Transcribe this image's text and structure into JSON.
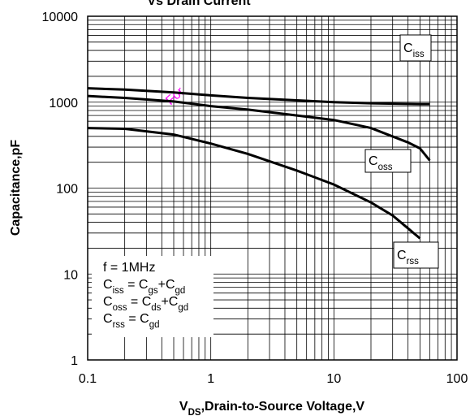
{
  "chart_data": {
    "type": "line",
    "title": "Vs Drain Current",
    "watermark": "For",
    "x_label": [
      {
        "t": "V"
      },
      {
        "sub": "DS"
      },
      {
        "t": ",Drain-to-Source Voltage,V"
      }
    ],
    "y_label": "Capacitance,pF",
    "log_x": true,
    "log_y": true,
    "grid": true,
    "xlim": [
      0.1,
      100
    ],
    "ylim": [
      1,
      10000
    ],
    "xticks": [
      0.1,
      1,
      10,
      100
    ],
    "yticks": [
      1,
      10,
      100,
      1000,
      10000
    ],
    "series": [
      {
        "name": "Ciss",
        "color": "#000000",
        "x": [
          0.1,
          0.2,
          0.5,
          1,
          2,
          5,
          10,
          20,
          50,
          60
        ],
        "values": [
          1450,
          1400,
          1300,
          1200,
          1120,
          1050,
          1000,
          970,
          950,
          950
        ]
      },
      {
        "name": "Coss",
        "color": "#000000",
        "x": [
          0.1,
          0.2,
          0.5,
          1,
          2,
          5,
          10,
          20,
          40,
          50,
          60
        ],
        "values": [
          1180,
          1120,
          1020,
          900,
          820,
          700,
          620,
          500,
          340,
          290,
          210
        ]
      },
      {
        "name": "Crss",
        "color": "#000000",
        "x": [
          0.1,
          0.2,
          0.5,
          1,
          2,
          5,
          10,
          20,
          30,
          50
        ],
        "values": [
          500,
          490,
          420,
          330,
          250,
          160,
          110,
          68,
          48,
          26
        ]
      }
    ],
    "note": [
      [
        {
          "t": "f = 1MHz"
        }
      ],
      [
        {
          "t": "C"
        },
        {
          "sub": "iss"
        },
        {
          "t": " = C"
        },
        {
          "sub": "gs"
        },
        {
          "t": "+C"
        },
        {
          "sub": "gd"
        }
      ],
      [
        {
          "t": "C"
        },
        {
          "sub": "oss"
        },
        {
          "t": " = C"
        },
        {
          "sub": "ds"
        },
        {
          "t": "+C"
        },
        {
          "sub": "gd"
        }
      ],
      [
        {
          "t": "C"
        },
        {
          "sub": "rss"
        },
        {
          "t": " = C"
        },
        {
          "sub": "gd"
        }
      ]
    ]
  }
}
